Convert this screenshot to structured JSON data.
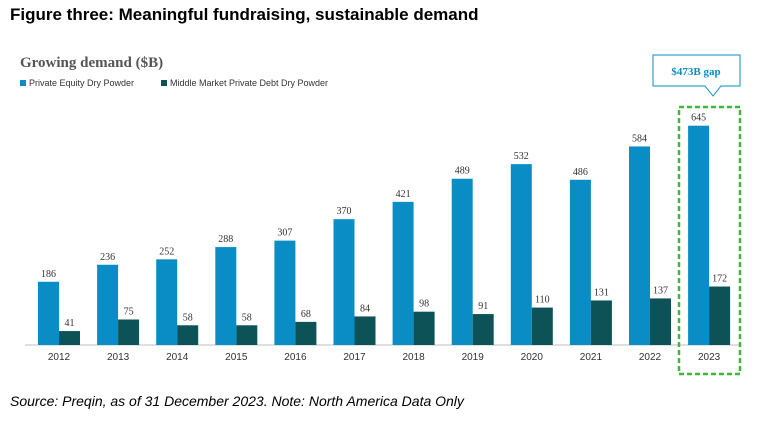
{
  "figure_title": "Figure three: Meaningful fundraising, sustainable demand",
  "source_note": "Source: Preqin, as of 31 December 2023. Note: North America Data Only",
  "colors": {
    "private_equity": "#0a8dc4",
    "private_debt": "#0d5257",
    "highlight": "#3db83a",
    "callout": "#0a8dc4",
    "chart_title": "#555555"
  },
  "chart_data": {
    "type": "bar",
    "title": "Growing demand ($B)",
    "categories": [
      "2012",
      "2013",
      "2014",
      "2015",
      "2016",
      "2017",
      "2018",
      "2019",
      "2020",
      "2021",
      "2022",
      "2023"
    ],
    "series": [
      {
        "name": "Private Equity Dry Powder",
        "values": [
          186,
          236,
          252,
          288,
          307,
          370,
          421,
          489,
          532,
          486,
          584,
          645
        ]
      },
      {
        "name": "Middle Market Private Debt Dry Powder",
        "values": [
          41,
          75,
          58,
          58,
          68,
          84,
          98,
          91,
          110,
          131,
          137,
          172
        ]
      }
    ],
    "ylim": [
      0,
      700
    ],
    "grid": false,
    "legend_position": "top-left",
    "annotation": {
      "text": "$473B gap",
      "category": "2023"
    }
  }
}
